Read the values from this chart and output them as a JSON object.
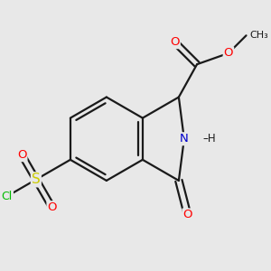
{
  "background_color": "#e8e8e8",
  "bond_color": "#1a1a1a",
  "bond_width": 1.6,
  "atom_colors": {
    "O": "#ff0000",
    "N": "#0000cc",
    "S": "#cccc00",
    "Cl": "#00bb00",
    "C": "#1a1a1a",
    "H": "#1a1a1a"
  },
  "font_size": 8.5,
  "figsize": [
    3.0,
    3.0
  ],
  "dpi": 100,
  "xlim": [
    -1.8,
    1.8
  ],
  "ylim": [
    -1.8,
    1.8
  ]
}
